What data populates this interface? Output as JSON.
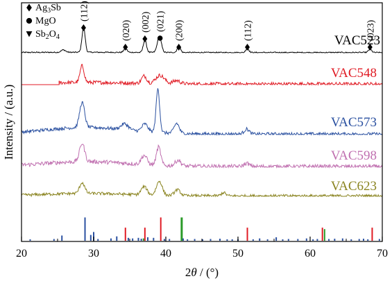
{
  "chart_data": {
    "type": "line",
    "xlabel_prefix": "2",
    "xlabel_var": "θ",
    "xlabel_suffix": " / (°)",
    "ylabel": "Intensity / (a.u.)",
    "xlim": [
      20,
      70
    ],
    "x_ticks": [
      "20",
      "30",
      "40",
      "50",
      "60",
      "70"
    ],
    "legend": [
      {
        "marker": "diamond",
        "label": "Ag3Sb",
        "base": "Ag",
        "sub1": "3",
        "mid": "Sb",
        "sub2": ""
      },
      {
        "marker": "circle",
        "label": "MgO",
        "base": "MgO",
        "sub1": "",
        "mid": "",
        "sub2": ""
      },
      {
        "marker": "triangle-down",
        "label": "Sb2O4",
        "base": "Sb",
        "sub1": "2",
        "mid": "O",
        "sub2": "4"
      }
    ],
    "peak_annotations": [
      {
        "x": 28.6,
        "label": "(112)",
        "marker": "diamond"
      },
      {
        "x": 34.4,
        "label": "(020)",
        "marker": "diamond"
      },
      {
        "x": 37.1,
        "label": "(002)",
        "marker": "diamond"
      },
      {
        "x": 39.2,
        "label": "(021)",
        "marker": "circle"
      },
      {
        "x": 41.8,
        "label": "(200)",
        "marker": "diamond"
      },
      {
        "x": 51.3,
        "label": "(112)",
        "marker": "diamond"
      },
      {
        "x": 68.3,
        "label": "(023)",
        "marker": "diamond"
      }
    ],
    "series": [
      {
        "name": "VAC523",
        "color": "#000000",
        "peaks": [
          [
            25.8,
            3,
            0.3
          ],
          [
            28.6,
            30,
            0.22
          ],
          [
            34.4,
            5,
            0.22
          ],
          [
            37.1,
            15,
            0.22
          ],
          [
            39.1,
            19,
            0.28
          ],
          [
            41.8,
            8,
            0.22
          ],
          [
            51.3,
            5,
            0.22
          ],
          [
            68.3,
            4,
            0.22
          ]
        ],
        "noise": 1.5,
        "hump": 0.3
      },
      {
        "name": "VAC548",
        "color": "#e01b24",
        "start": 25.2,
        "peaks": [
          [
            28.4,
            20,
            0.28
          ],
          [
            37.0,
            9,
            0.35
          ],
          [
            39.2,
            10,
            0.6
          ],
          [
            41.5,
            4,
            0.5
          ]
        ],
        "noise": 4.5,
        "hump": 2
      },
      {
        "name": "VAC573",
        "color": "#2a50a0",
        "peaks": [
          [
            28.4,
            30,
            0.35
          ],
          [
            34.3,
            7,
            0.5
          ],
          [
            37.1,
            9,
            0.4
          ],
          [
            38.9,
            52,
            0.25
          ],
          [
            41.5,
            12,
            0.35
          ],
          [
            51.2,
            6,
            0.35
          ]
        ],
        "noise": 4,
        "hump": 8
      },
      {
        "name": "VAC598",
        "color": "#c070b0",
        "peaks": [
          [
            28.4,
            22,
            0.35
          ],
          [
            37.0,
            11,
            0.4
          ],
          [
            39.0,
            22,
            0.3
          ],
          [
            41.7,
            7,
            0.4
          ],
          [
            51.2,
            4,
            0.35
          ]
        ],
        "noise": 5,
        "hump": 6
      },
      {
        "name": "VAC623",
        "color": "#8a8420",
        "peaks": [
          [
            28.4,
            13,
            0.35
          ],
          [
            37.0,
            10,
            0.4
          ],
          [
            39.1,
            17,
            0.4
          ],
          [
            41.6,
            7,
            0.4
          ],
          [
            48.0,
            4,
            0.3
          ]
        ],
        "noise": 3.5,
        "hump": 3
      }
    ],
    "reference_patterns": [
      {
        "phase": "Ag3Sb",
        "color": "#e01b24",
        "lines": [
          [
            34.4,
            0.45
          ],
          [
            37.1,
            0.45
          ],
          [
            39.3,
            0.8
          ],
          [
            51.3,
            0.45
          ],
          [
            61.7,
            0.45
          ],
          [
            68.6,
            0.45
          ]
        ]
      },
      {
        "phase": "MgO",
        "color": "#2a9a28",
        "lines": [
          [
            36.9,
            0.08
          ],
          [
            42.2,
            0.8
          ],
          [
            62.0,
            0.4
          ]
        ]
      },
      {
        "phase": "Sb2O4",
        "color": "#2a50a0",
        "lines": [
          [
            21.2,
            0.05
          ],
          [
            24.5,
            0.06
          ],
          [
            25.6,
            0.18
          ],
          [
            28.8,
            0.8
          ],
          [
            29.6,
            0.2
          ],
          [
            30.0,
            0.3
          ],
          [
            30.6,
            0.06
          ],
          [
            32.4,
            0.08
          ],
          [
            33.2,
            0.15
          ],
          [
            34.8,
            0.1
          ],
          [
            35.4,
            0.08
          ],
          [
            36.2,
            0.1
          ],
          [
            36.6,
            0.07
          ],
          [
            37.5,
            0.12
          ],
          [
            38.3,
            0.1
          ],
          [
            39.8,
            0.06
          ],
          [
            40.5,
            0.06
          ],
          [
            42.4,
            0.08
          ],
          [
            43.0,
            0.05
          ],
          [
            44.0,
            0.06
          ],
          [
            45.1,
            0.05
          ],
          [
            46.2,
            0.06
          ],
          [
            47.5,
            0.07
          ],
          [
            48.5,
            0.05
          ],
          [
            49.2,
            0.05
          ],
          [
            50.0,
            0.05
          ],
          [
            52.1,
            0.05
          ],
          [
            53.0,
            0.08
          ],
          [
            54.1,
            0.05
          ],
          [
            55.3,
            0.12
          ],
          [
            56.2,
            0.05
          ],
          [
            57.0,
            0.06
          ],
          [
            58.3,
            0.06
          ],
          [
            59.5,
            0.08
          ],
          [
            60.4,
            0.05
          ],
          [
            61.0,
            0.06
          ],
          [
            62.6,
            0.06
          ],
          [
            63.4,
            0.07
          ],
          [
            64.5,
            0.08
          ],
          [
            65.7,
            0.05
          ],
          [
            66.8,
            0.06
          ],
          [
            67.4,
            0.07
          ],
          [
            68.0,
            0.05
          ],
          [
            69.6,
            0.06
          ]
        ]
      }
    ]
  }
}
